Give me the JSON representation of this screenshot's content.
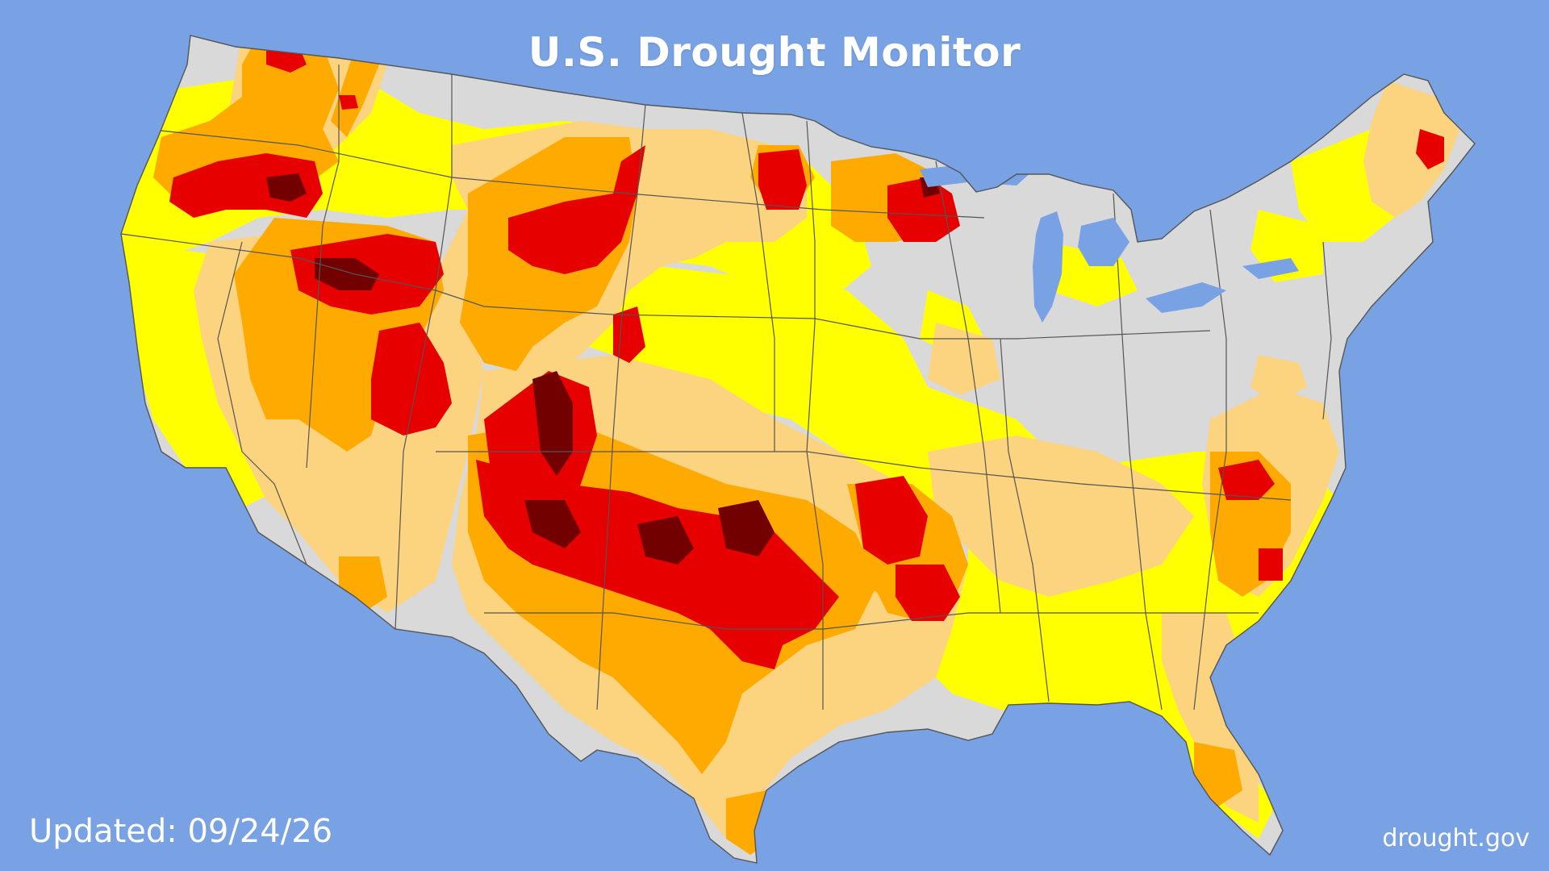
{
  "header": {
    "title": "U.S. Drought Monitor"
  },
  "footer": {
    "updated": "Updated: 09/24/26",
    "source": "drought.gov"
  },
  "colors": {
    "background": "#78a2e3",
    "none": "#d9d9d9",
    "D0": "#ffff00",
    "D1": "#fcd37f",
    "D2": "#ffaa00",
    "D3": "#e60000",
    "D4": "#730000",
    "border": "#555555"
  }
}
